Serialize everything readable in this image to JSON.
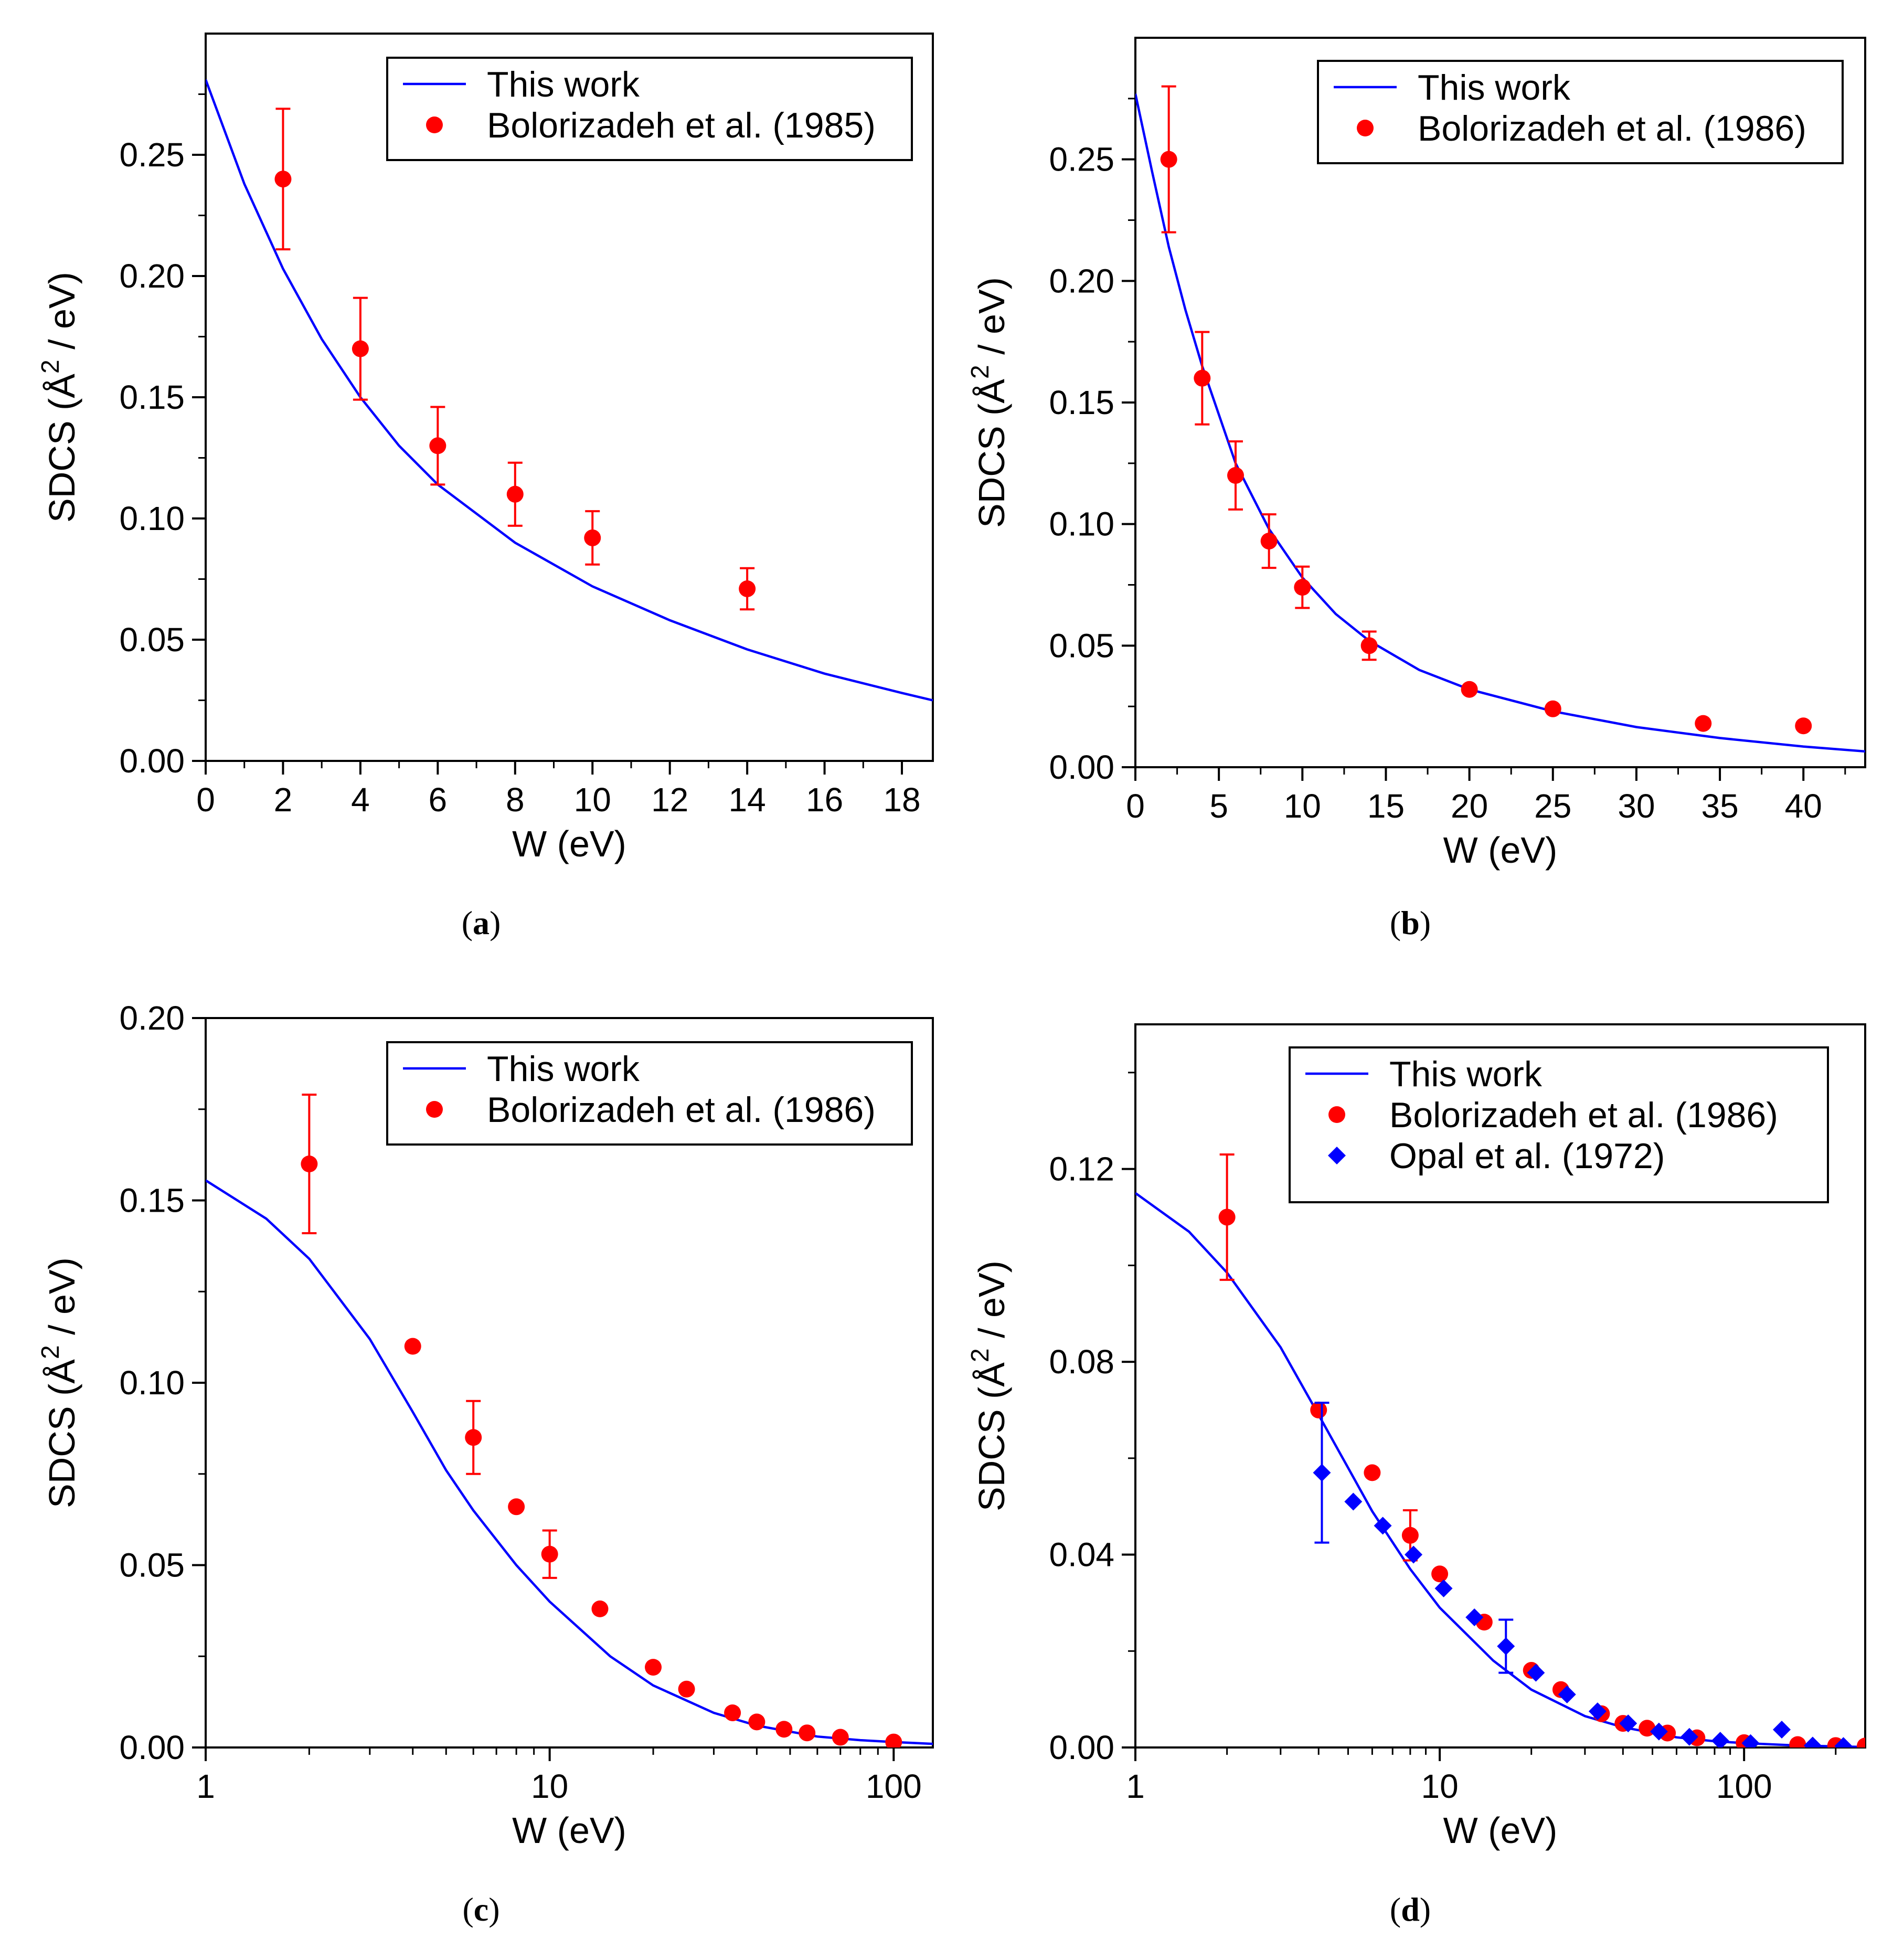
{
  "chart_data": [
    {
      "type": "scatter",
      "panel_label": [
        "(",
        "a",
        ")"
      ],
      "xlabel": "W (eV)",
      "ylabel": "SDCS (Å^2 / eV)",
      "xscale": "linear",
      "xlim": [
        0,
        18.8
      ],
      "ylim": [
        0,
        0.3
      ],
      "xticks": [
        0,
        2,
        4,
        6,
        8,
        10,
        12,
        14,
        16,
        18
      ],
      "xtick_labels": [
        "0",
        "2",
        "4",
        "6",
        "8",
        "10",
        "12",
        "14",
        "16",
        "18"
      ],
      "yticks": [
        0,
        0.05,
        0.1,
        0.15,
        0.2,
        0.25
      ],
      "ytick_labels": [
        "0.00",
        "0.05",
        "0.10",
        "0.15",
        "0.20",
        "0.25"
      ],
      "legend_position": "top-right",
      "series": [
        {
          "name": "This work",
          "kind": "line",
          "color": "#0000ff",
          "x": [
            0,
            1,
            2,
            3,
            4,
            5,
            6,
            8,
            10,
            12,
            14,
            16,
            18,
            18.8
          ],
          "y": [
            0.281,
            0.238,
            0.203,
            0.174,
            0.15,
            0.13,
            0.114,
            0.09,
            0.072,
            0.058,
            0.046,
            0.036,
            0.028,
            0.025
          ]
        },
        {
          "name": "Bolorizadeh et al. (1985)",
          "kind": "points-errorbars",
          "color": "#ff0000",
          "x": [
            2,
            4,
            6,
            8,
            10,
            14
          ],
          "y": [
            0.24,
            0.17,
            0.13,
            0.11,
            0.092,
            0.071
          ],
          "yerr": [
            0.029,
            0.021,
            0.016,
            0.013,
            0.011,
            0.0085
          ]
        }
      ]
    },
    {
      "type": "scatter",
      "panel_label": [
        "(",
        "b",
        ")"
      ],
      "xlabel": "W (eV)",
      "ylabel": "SDCS (Å^2 / eV)",
      "xscale": "linear",
      "xlim": [
        0,
        43.7
      ],
      "ylim": [
        0,
        0.3
      ],
      "xticks": [
        0,
        5,
        10,
        15,
        20,
        25,
        30,
        35,
        40
      ],
      "xtick_labels": [
        "0",
        "5",
        "10",
        "15",
        "20",
        "25",
        "30",
        "35",
        "40"
      ],
      "yticks": [
        0,
        0.05,
        0.1,
        0.15,
        0.2,
        0.25
      ],
      "ytick_labels": [
        "0.00",
        "0.05",
        "0.10",
        "0.15",
        "0.20",
        "0.25"
      ],
      "legend_position": "top-right",
      "series": [
        {
          "name": "This work",
          "kind": "line",
          "color": "#0000ff",
          "x": [
            0,
            1,
            2,
            3,
            4,
            6,
            8,
            10,
            12,
            14,
            17,
            20,
            25,
            30,
            35,
            40,
            43.7
          ],
          "y": [
            0.277,
            0.245,
            0.214,
            0.188,
            0.165,
            0.125,
            0.098,
            0.078,
            0.063,
            0.052,
            0.04,
            0.032,
            0.023,
            0.0165,
            0.012,
            0.0085,
            0.0065
          ]
        },
        {
          "name": "Bolorizadeh et al. (1986)",
          "kind": "points-errorbars",
          "color": "#ff0000",
          "x": [
            2,
            4,
            6,
            8,
            10,
            14,
            20,
            25,
            34,
            40
          ],
          "y": [
            0.25,
            0.16,
            0.12,
            0.093,
            0.074,
            0.05,
            0.032,
            0.024,
            0.018,
            0.017
          ],
          "yerr": [
            0.03,
            0.019,
            0.014,
            0.011,
            0.0085,
            0.0058,
            0,
            0,
            0,
            0
          ]
        }
      ]
    },
    {
      "type": "scatter",
      "panel_label": [
        "(",
        "c",
        ")"
      ],
      "xlabel": "W (eV)",
      "ylabel": "SDCS (Å^2 / eV)",
      "xscale": "log",
      "xlim": [
        1,
        130
      ],
      "ylim": [
        0,
        0.2
      ],
      "xticks": [
        1,
        10,
        100
      ],
      "xtick_labels": [
        "1",
        "10",
        "100"
      ],
      "yticks": [
        0,
        0.05,
        0.1,
        0.15,
        0.2
      ],
      "ytick_labels": [
        "0.00",
        "0.05",
        "0.10",
        "0.15",
        "0.20"
      ],
      "legend_position": "top-right",
      "series": [
        {
          "name": "This work",
          "kind": "line",
          "color": "#0000ff",
          "x": [
            1,
            1.5,
            2,
            3,
            4,
            5,
            6,
            8,
            10,
            15,
            20,
            30,
            40,
            60,
            80,
            100,
            130
          ],
          "y": [
            0.1555,
            0.145,
            0.134,
            0.112,
            0.092,
            0.076,
            0.065,
            0.05,
            0.04,
            0.025,
            0.017,
            0.0095,
            0.006,
            0.003,
            0.002,
            0.0015,
            0.001
          ]
        },
        {
          "name": "Bolorizadeh et al. (1986)",
          "kind": "points-errorbars",
          "color": "#ff0000",
          "x": [
            2,
            4,
            6,
            8,
            10,
            14,
            20,
            25,
            34,
            40,
            48,
            56,
            70,
            100
          ],
          "y": [
            0.16,
            0.11,
            0.085,
            0.066,
            0.053,
            0.038,
            0.022,
            0.016,
            0.0095,
            0.007,
            0.005,
            0.004,
            0.0028,
            0.0015
          ],
          "yerr": [
            0.019,
            0,
            0.01,
            0,
            0.0065,
            0,
            0,
            0,
            0,
            0,
            0,
            0,
            0,
            0
          ]
        }
      ]
    },
    {
      "type": "scatter",
      "panel_label": [
        "(",
        "d",
        ")"
      ],
      "xlabel": "W (eV)",
      "ylabel": "SDCS (Å^2 / eV)",
      "xscale": "log",
      "xlim": [
        1,
        250
      ],
      "ylim": [
        0,
        0.15
      ],
      "xticks": [
        1,
        10,
        100
      ],
      "xtick_labels": [
        "1",
        "10",
        "100"
      ],
      "yticks": [
        0,
        0.04,
        0.08,
        0.12
      ],
      "ytick_labels": [
        "0.00",
        "0.04",
        "0.08",
        "0.12"
      ],
      "legend_position": "top-right",
      "series": [
        {
          "name": "This work",
          "kind": "line",
          "color": "#0000ff",
          "x": [
            1,
            1.5,
            2,
            3,
            4,
            5,
            6,
            8,
            10,
            15,
            20,
            30,
            40,
            60,
            80,
            100,
            150,
            250
          ],
          "y": [
            0.115,
            0.107,
            0.0985,
            0.083,
            0.069,
            0.058,
            0.049,
            0.037,
            0.029,
            0.018,
            0.012,
            0.0065,
            0.0042,
            0.0021,
            0.0013,
            0.0009,
            0.0004,
            0.0001
          ]
        },
        {
          "name": "Bolorizadeh et al. (1986)",
          "kind": "points-errorbars",
          "color": "#ff0000",
          "x": [
            2,
            4,
            6,
            8,
            10,
            14,
            20,
            25,
            34,
            40,
            48,
            56,
            70,
            100,
            150,
            200,
            250
          ],
          "y": [
            0.11,
            0.07,
            0.057,
            0.044,
            0.036,
            0.026,
            0.016,
            0.012,
            0.007,
            0.005,
            0.004,
            0.003,
            0.002,
            0.001,
            0.0006,
            0.0004,
            0.0003
          ],
          "yerr": [
            0.013,
            0,
            0,
            0.0052,
            0,
            0,
            0,
            0,
            0,
            0,
            0,
            0,
            0,
            0,
            0,
            0,
            0
          ]
        },
        {
          "name": "Opal et al. (1972)",
          "kind": "diamonds-errorbars",
          "color": "#0000ff",
          "x": [
            4.1,
            5.2,
            6.5,
            8.2,
            10.3,
            13,
            16.5,
            20.7,
            26.2,
            33,
            41.6,
            52.5,
            66.1,
            83.5,
            105,
            133,
            168,
            212
          ],
          "y": [
            0.057,
            0.051,
            0.046,
            0.04,
            0.033,
            0.027,
            0.021,
            0.0155,
            0.011,
            0.0075,
            0.005,
            0.0033,
            0.0022,
            0.0014,
            0.0009,
            0.0037,
            0.0004,
            0.0003
          ],
          "yerr": [
            0.0145,
            0,
            0,
            0,
            0,
            0,
            0.0055,
            0,
            0,
            0,
            0,
            0,
            0,
            0,
            0,
            0,
            0,
            0
          ]
        }
      ]
    }
  ]
}
